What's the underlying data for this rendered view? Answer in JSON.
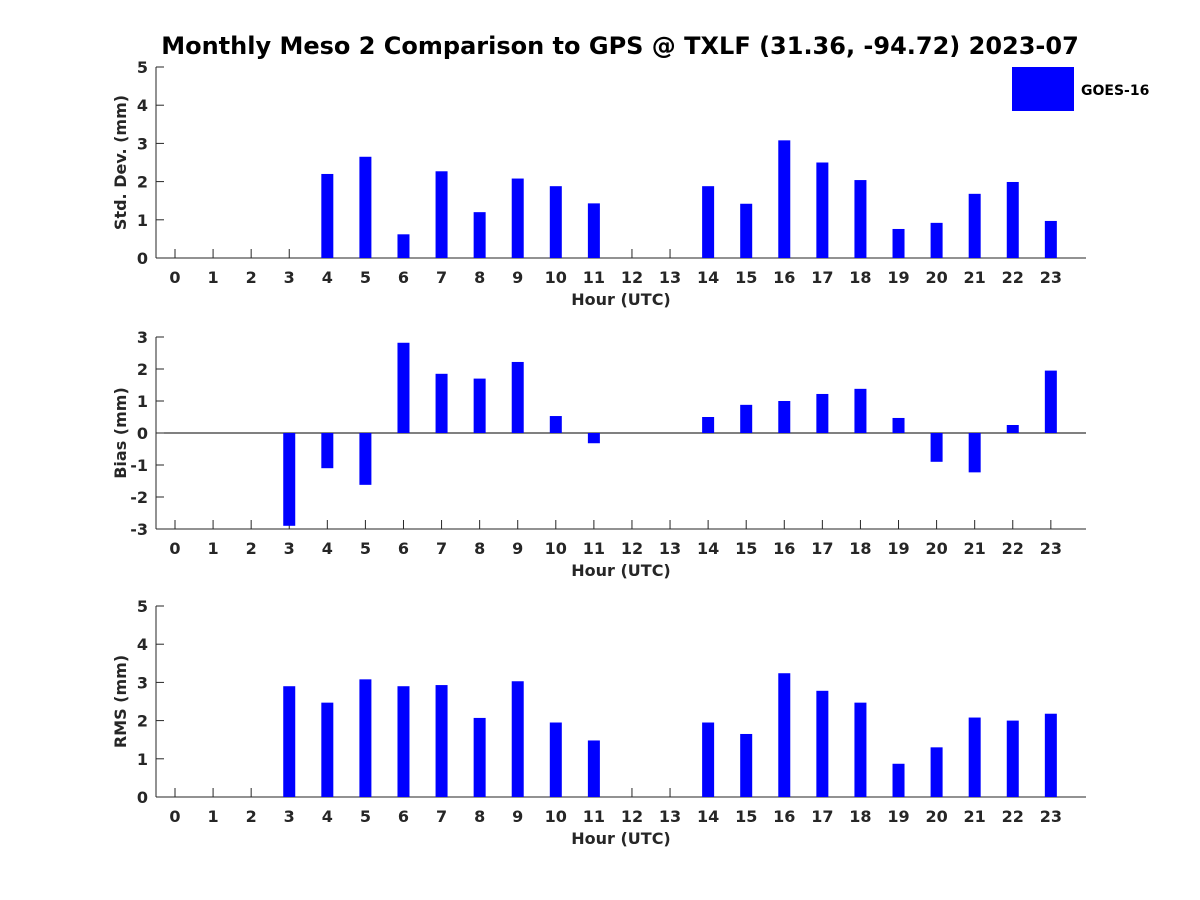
{
  "figure_title": "Monthly Meso 2 Comparison to GPS @ TXLF (31.36, -94.72) 2023-07",
  "legend": {
    "label": "GOES-16",
    "color": "#0000ff"
  },
  "chart_data": [
    {
      "type": "bar",
      "title": "Monthly Meso 2 Comparison to GPS @ TXLF (31.36, -94.72) 2023-07",
      "xlabel": "Hour (UTC)",
      "ylabel": "Std. Dev. (mm)",
      "ylim": [
        0,
        5
      ],
      "yticks": [
        0,
        1,
        2,
        3,
        4,
        5
      ],
      "categories": [
        "0",
        "1",
        "2",
        "3",
        "4",
        "5",
        "6",
        "7",
        "8",
        "9",
        "10",
        "11",
        "12",
        "13",
        "14",
        "15",
        "16",
        "17",
        "18",
        "19",
        "20",
        "21",
        "22",
        "23"
      ],
      "series": [
        {
          "name": "GOES-16",
          "color": "#0000ff",
          "values": [
            null,
            null,
            null,
            null,
            2.2,
            2.65,
            0.62,
            2.27,
            1.2,
            2.08,
            1.88,
            1.43,
            null,
            null,
            1.88,
            1.42,
            3.08,
            2.5,
            2.04,
            0.76,
            0.92,
            1.68,
            1.99,
            0.97
          ]
        }
      ],
      "legend": "top-right"
    },
    {
      "type": "bar",
      "xlabel": "Hour (UTC)",
      "ylabel": "Bias (mm)",
      "ylim": [
        -3,
        3
      ],
      "yticks": [
        -3,
        -2,
        -1,
        0,
        1,
        2,
        3
      ],
      "categories": [
        "0",
        "1",
        "2",
        "3",
        "4",
        "5",
        "6",
        "7",
        "8",
        "9",
        "10",
        "11",
        "12",
        "13",
        "14",
        "15",
        "16",
        "17",
        "18",
        "19",
        "20",
        "21",
        "22",
        "23"
      ],
      "series": [
        {
          "name": "GOES-16",
          "color": "#0000ff",
          "values": [
            null,
            null,
            null,
            -2.9,
            -1.1,
            -1.62,
            2.82,
            1.85,
            1.7,
            2.22,
            0.53,
            -0.32,
            null,
            null,
            0.5,
            0.88,
            1.0,
            1.22,
            1.38,
            0.47,
            -0.9,
            -1.23,
            0.25,
            1.95
          ]
        }
      ]
    },
    {
      "type": "bar",
      "xlabel": "Hour (UTC)",
      "ylabel": "RMS (mm)",
      "ylim": [
        0,
        5
      ],
      "yticks": [
        0,
        1,
        2,
        3,
        4,
        5
      ],
      "categories": [
        "0",
        "1",
        "2",
        "3",
        "4",
        "5",
        "6",
        "7",
        "8",
        "9",
        "10",
        "11",
        "12",
        "13",
        "14",
        "15",
        "16",
        "17",
        "18",
        "19",
        "20",
        "21",
        "22",
        "23"
      ],
      "series": [
        {
          "name": "GOES-16",
          "color": "#0000ff",
          "values": [
            null,
            null,
            null,
            2.9,
            2.47,
            3.08,
            2.9,
            2.93,
            2.07,
            3.03,
            1.95,
            1.48,
            null,
            null,
            1.95,
            1.65,
            3.24,
            2.78,
            2.47,
            0.87,
            1.3,
            2.08,
            2.0,
            2.18
          ]
        }
      ]
    }
  ]
}
